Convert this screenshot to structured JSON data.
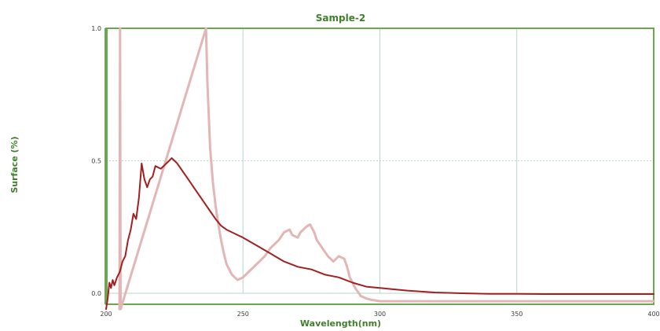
{
  "chart_data": {
    "type": "line",
    "title": "Sample-2",
    "xlabel": "Wavelength(nm)",
    "ylabel": "Surface (%)",
    "xlim": [
      200,
      400
    ],
    "ylim": [
      0,
      1
    ],
    "x_ticks": [
      200,
      250,
      300,
      350,
      400
    ],
    "x_tick_labels": [
      "200",
      "250",
      "300",
      "350",
      "400"
    ],
    "y_ticks": [
      0,
      0.5,
      1
    ],
    "y_tick_labels": [
      "0.0",
      "0.5",
      "1.0"
    ],
    "grid": true,
    "legend": "none",
    "colors": {
      "frame": "#6aa84f",
      "grid": "#b9d6c9",
      "series_1": "#a32020",
      "series_2": "#e3b5b5",
      "text": "#3f7f2a"
    },
    "series": [
      {
        "values_x": [
          200,
          200.6,
          201.2,
          201.8,
          202.4,
          203,
          204,
          205,
          206,
          207,
          208,
          209,
          210,
          211,
          212,
          213,
          214,
          215,
          216,
          217,
          218,
          220,
          222,
          224,
          226,
          228,
          230,
          232,
          234,
          236,
          238,
          240,
          242,
          244,
          246,
          248,
          250,
          255,
          260,
          265,
          270,
          275,
          280,
          285,
          290,
          295,
          300,
          310,
          320,
          330,
          340,
          350,
          360,
          370,
          380,
          390,
          400
        ],
        "values_y": [
          -0.06,
          -0.02,
          0.04,
          0.02,
          0.05,
          0.03,
          0.06,
          0.08,
          0.12,
          0.14,
          0.2,
          0.24,
          0.3,
          0.28,
          0.36,
          0.49,
          0.43,
          0.4,
          0.43,
          0.44,
          0.48,
          0.47,
          0.49,
          0.51,
          0.49,
          0.46,
          0.43,
          0.4,
          0.37,
          0.34,
          0.31,
          0.28,
          0.255,
          0.24,
          0.23,
          0.22,
          0.21,
          0.18,
          0.15,
          0.12,
          0.1,
          0.09,
          0.07,
          0.06,
          0.04,
          0.025,
          0.02,
          0.01,
          0.003,
          0.0,
          -0.002,
          -0.002,
          -0.003,
          -0.003,
          -0.003,
          -0.003,
          -0.003
        ]
      },
      {
        "values_x": [
          204.9,
          205.1,
          205.3,
          236.5,
          237,
          238,
          239,
          240,
          241,
          242,
          243,
          244,
          246,
          248,
          250,
          252,
          254,
          256,
          258,
          260,
          261,
          263,
          265,
          267,
          268,
          270,
          271,
          273,
          274.5,
          276,
          277,
          279,
          281,
          283,
          285,
          287,
          288,
          289,
          290,
          291,
          292,
          293,
          295,
          297,
          300,
          310,
          320,
          330,
          340,
          350,
          360,
          370,
          380,
          390,
          400
        ],
        "values_y": [
          -0.06,
          1.0,
          -0.06,
          1.0,
          0.8,
          0.55,
          0.42,
          0.33,
          0.26,
          0.2,
          0.15,
          0.11,
          0.07,
          0.05,
          0.06,
          0.08,
          0.1,
          0.12,
          0.14,
          0.17,
          0.18,
          0.2,
          0.23,
          0.24,
          0.22,
          0.21,
          0.23,
          0.25,
          0.26,
          0.23,
          0.2,
          0.17,
          0.14,
          0.12,
          0.14,
          0.13,
          0.1,
          0.06,
          0.04,
          0.02,
          0.005,
          -0.01,
          -0.02,
          -0.025,
          -0.03,
          -0.03,
          -0.03,
          -0.03,
          -0.03,
          -0.03,
          -0.03,
          -0.03,
          -0.03,
          -0.03,
          -0.03
        ]
      }
    ]
  }
}
